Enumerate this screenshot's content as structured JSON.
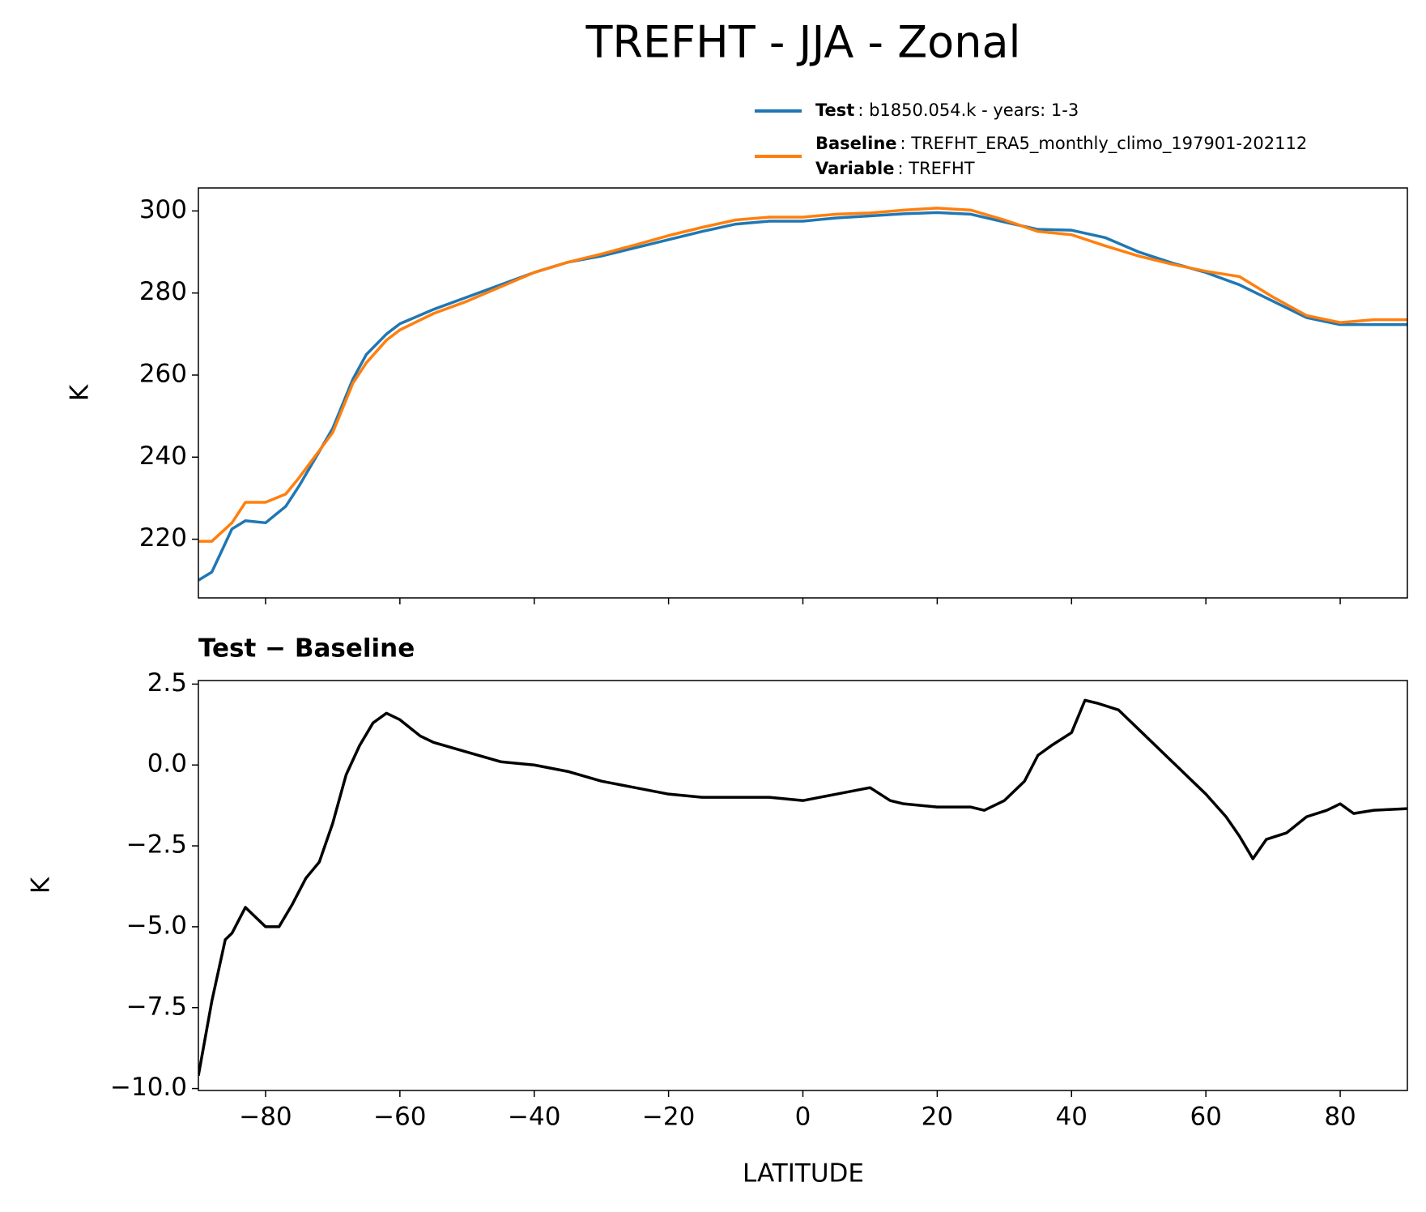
{
  "chart_data": [
    {
      "type": "line",
      "title": "TREFHT - JJA - Zonal",
      "y_label": "K",
      "x": [
        -90,
        -88,
        -85,
        -83,
        -80,
        -77,
        -75,
        -70,
        -67,
        -65,
        -62,
        -60,
        -55,
        -50,
        -45,
        -40,
        -35,
        -30,
        -25,
        -20,
        -15,
        -10,
        -5,
        0,
        5,
        10,
        15,
        20,
        25,
        30,
        35,
        40,
        45,
        50,
        55,
        60,
        65,
        70,
        75,
        80,
        85,
        90
      ],
      "series": [
        {
          "name": "Test",
          "legend_text": ": b1850.054.k - years: 1-3",
          "color": "#1f77b4",
          "values": [
            210,
            212,
            222.5,
            224.5,
            224,
            228,
            233,
            247,
            259,
            265,
            270,
            272.5,
            276,
            279,
            282,
            285,
            287.5,
            289,
            291,
            293,
            295,
            296.8,
            297.5,
            297.5,
            298.3,
            298.8,
            299.3,
            299.6,
            299.2,
            297.3,
            295.5,
            295.3,
            293.5,
            290,
            287.3,
            285,
            282,
            278,
            274,
            272.3,
            272.3,
            272.3
          ]
        },
        {
          "name": "Baseline",
          "legend_text": ": TREFHT_ERA5_monthly_climo_197901-202112",
          "color": "#ff7f0e",
          "values": [
            219.5,
            219.5,
            224,
            229,
            229,
            231,
            235,
            246,
            258,
            263,
            268.5,
            271,
            275,
            278,
            281.5,
            285,
            287.5,
            289.5,
            291.7,
            294,
            296,
            297.8,
            298.5,
            298.5,
            299.2,
            299.5,
            300.2,
            300.7,
            300.2,
            297.8,
            295,
            294.2,
            291.5,
            289,
            287,
            285.3,
            284,
            279,
            274.5,
            272.8,
            273.5,
            273.5
          ]
        }
      ],
      "legend_extra": {
        "name": "Variable",
        "text": ": TREFHT"
      },
      "xlim": [
        -90,
        90
      ],
      "xticks": [
        -80,
        -60,
        -40,
        -20,
        0,
        20,
        40,
        60,
        80
      ],
      "ylim": [
        205.7,
        305.6
      ],
      "yticks": [
        220,
        240,
        260,
        280,
        300
      ]
    },
    {
      "type": "line",
      "title": "Test − Baseline",
      "x_label": "LATITUDE",
      "y_label": "K",
      "x": [
        -90,
        -88,
        -86,
        -85,
        -83,
        -80,
        -78,
        -76,
        -74,
        -72,
        -70,
        -68,
        -66,
        -64,
        -62,
        -60,
        -57,
        -55,
        -50,
        -45,
        -40,
        -35,
        -30,
        -25,
        -20,
        -15,
        -10,
        -5,
        0,
        5,
        10,
        13,
        15,
        20,
        25,
        27,
        30,
        33,
        35,
        37,
        40,
        42,
        44,
        47,
        50,
        55,
        60,
        63,
        65,
        67,
        69,
        72,
        75,
        78,
        80,
        82,
        85,
        90
      ],
      "series": [
        {
          "name": "Test − Baseline",
          "color": "#000000",
          "values": [
            -9.6,
            -7.3,
            -5.4,
            -5.2,
            -4.4,
            -5.0,
            -5.0,
            -4.3,
            -3.5,
            -3.0,
            -1.8,
            -0.3,
            0.6,
            1.3,
            1.6,
            1.4,
            0.9,
            0.7,
            0.4,
            0.1,
            0.0,
            -0.2,
            -0.5,
            -0.7,
            -0.9,
            -1.0,
            -1.0,
            -1.0,
            -1.1,
            -0.9,
            -0.7,
            -1.1,
            -1.2,
            -1.3,
            -1.3,
            -1.4,
            -1.1,
            -0.5,
            0.3,
            0.6,
            1.0,
            2.0,
            1.9,
            1.7,
            1.1,
            0.1,
            -0.9,
            -1.6,
            -2.2,
            -2.9,
            -2.3,
            -2.1,
            -1.6,
            -1.4,
            -1.2,
            -1.5,
            -1.4,
            -1.35
          ]
        }
      ],
      "xlim": [
        -90,
        90
      ],
      "xticks": [
        {
          "value": -80,
          "label": "−80"
        },
        {
          "value": -60,
          "label": "−60"
        },
        {
          "value": -40,
          "label": "−40"
        },
        {
          "value": -20,
          "label": "−20"
        },
        0,
        20,
        40,
        60,
        80
      ],
      "ylim": [
        -10.06,
        2.61
      ],
      "yticks": [
        {
          "value": -10,
          "label": "−10.0"
        },
        {
          "value": -7.5,
          "label": "−7.5"
        },
        {
          "value": -5,
          "label": "−5.0"
        },
        {
          "value": -2.5,
          "label": "−2.5"
        },
        {
          "value": 0,
          "label": "0.0"
        },
        2.5
      ]
    }
  ]
}
